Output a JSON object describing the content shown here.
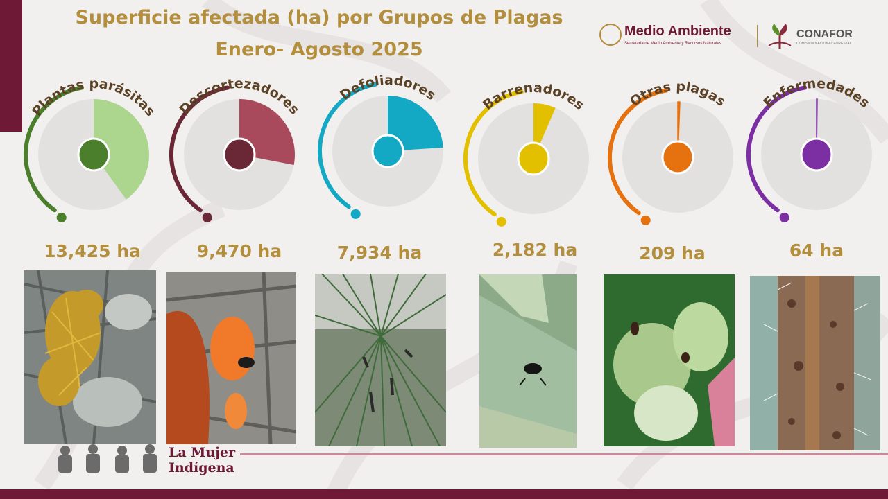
{
  "title": {
    "line1": "Superficie afectada (ha) por Grupos  de Plagas",
    "line2": "Enero- Agosto 2025"
  },
  "logos": {
    "medio_ambiente": "Medio Ambiente",
    "medio_ambiente_sub": "Secretaría de Medio Ambiente y Recursos Naturales",
    "conafor": "CONAFOR",
    "conafor_sub": "COMISIÓN NACIONAL FORESTAL"
  },
  "chart_data": {
    "type": "pie",
    "unit": "ha",
    "series": [
      {
        "name": "Plantas parásitas",
        "value": 13425,
        "value_label": "13,425 ha",
        "fraction": 0.4,
        "color": "#acd58e",
        "dark": "#4b7f2c"
      },
      {
        "name": "Descortezadores",
        "value": 9470,
        "value_label": "9,470 ha",
        "fraction": 0.28,
        "color": "#a84a5c",
        "dark": "#6a2836"
      },
      {
        "name": "Defoliadores",
        "value": 7934,
        "value_label": "7,934 ha",
        "fraction": 0.24,
        "color": "#13a9c4",
        "dark": "#13a9c4"
      },
      {
        "name": "Barrenadores",
        "value": 2182,
        "value_label": "2,182 ha",
        "fraction": 0.065,
        "color": "#e2c000",
        "dark": "#e2c000"
      },
      {
        "name": "Otras plagas",
        "value": 209,
        "value_label": "209 ha",
        "fraction": 0.006,
        "color": "#e6720f",
        "dark": "#e6720f"
      },
      {
        "name": "Enfermedades",
        "value": 64,
        "value_label": "64 ha",
        "fraction": 0.002,
        "color": "#7b2fa3",
        "dark": "#7b2fa3"
      }
    ]
  },
  "footer": {
    "mujer_line1": "La Mujer",
    "mujer_line2": "Indígena"
  }
}
